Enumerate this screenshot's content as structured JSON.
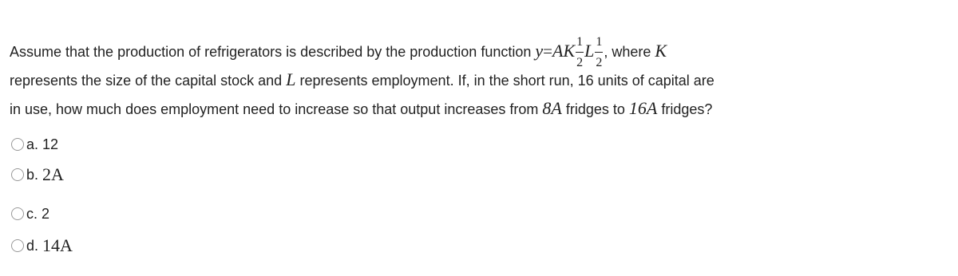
{
  "question": {
    "line1": "Assume that the production of refrigerators is described by the production function",
    "formula": {
      "lhs": "y",
      "eq": "=",
      "a": "AK",
      "exp1": {
        "num": "1",
        "den": "2"
      },
      "b": "L",
      "exp2": {
        "num": "1",
        "den": "2"
      }
    },
    "where": ", where",
    "k": "K",
    "line2a": "represents the size of the capital stock and",
    "l": "L",
    "line2b": "represents employment. If, in the short run, 16 units of capital are",
    "line3a": "in use, how much does employment need to increase so that output increases from",
    "from": "8A",
    "line3b": "fridges to",
    "to": "16A",
    "line3c": "fridges?"
  },
  "options": [
    {
      "letter": "a.",
      "answer": "12"
    },
    {
      "letter": "b.",
      "answer": "2A"
    },
    {
      "letter": "c.",
      "answer": "2"
    },
    {
      "letter": "d.",
      "answer": "14A"
    }
  ]
}
